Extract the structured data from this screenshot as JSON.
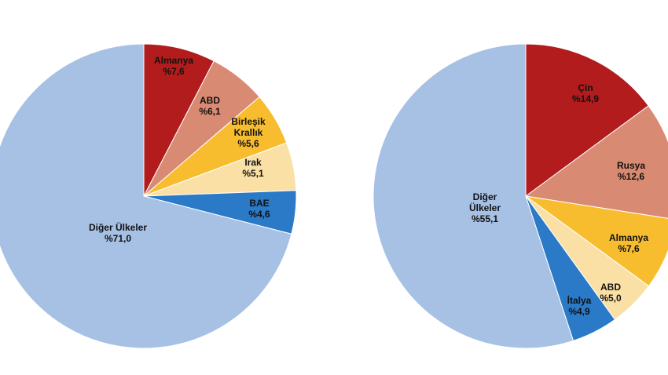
{
  "chart_data": [
    {
      "type": "pie",
      "slices": [
        {
          "label": [
            "Almanya",
            "%7,6"
          ],
          "value": 7.6,
          "color": "#b21c1c"
        },
        {
          "label": [
            "ABD",
            "%6,1"
          ],
          "value": 6.1,
          "color": "#d98a72"
        },
        {
          "label": [
            "Birleşik",
            "Krallık",
            "%5,6"
          ],
          "value": 5.6,
          "color": "#f7bd2f"
        },
        {
          "label": [
            "Irak",
            "%5,1"
          ],
          "value": 5.1,
          "color": "#fbe0a6"
        },
        {
          "label": [
            "BAE",
            "%4,6"
          ],
          "value": 4.6,
          "color": "#2a7ac7"
        },
        {
          "label": [
            "Diğer Ülkeler",
            "%71,0"
          ],
          "value": 71.0,
          "color": "#a7c1e4"
        }
      ]
    },
    {
      "type": "pie",
      "slices": [
        {
          "label": [
            "Çin",
            "%14,9"
          ],
          "value": 14.9,
          "color": "#b21c1c"
        },
        {
          "label": [
            "Rusya",
            "%12,6"
          ],
          "value": 12.6,
          "color": "#d98a72"
        },
        {
          "label": [
            "Almanya",
            "%7,6"
          ],
          "value": 7.6,
          "color": "#f7bd2f"
        },
        {
          "label": [
            "ABD",
            "%5,0"
          ],
          "value": 5.0,
          "color": "#fbe0a6"
        },
        {
          "label": [
            "İtalya",
            "%4,9"
          ],
          "value": 4.9,
          "color": "#2a7ac7"
        },
        {
          "label": [
            "Diğer",
            "Ülkeler",
            "%55,1"
          ],
          "value": 55.1,
          "color": "#a7c1e4"
        }
      ]
    }
  ]
}
